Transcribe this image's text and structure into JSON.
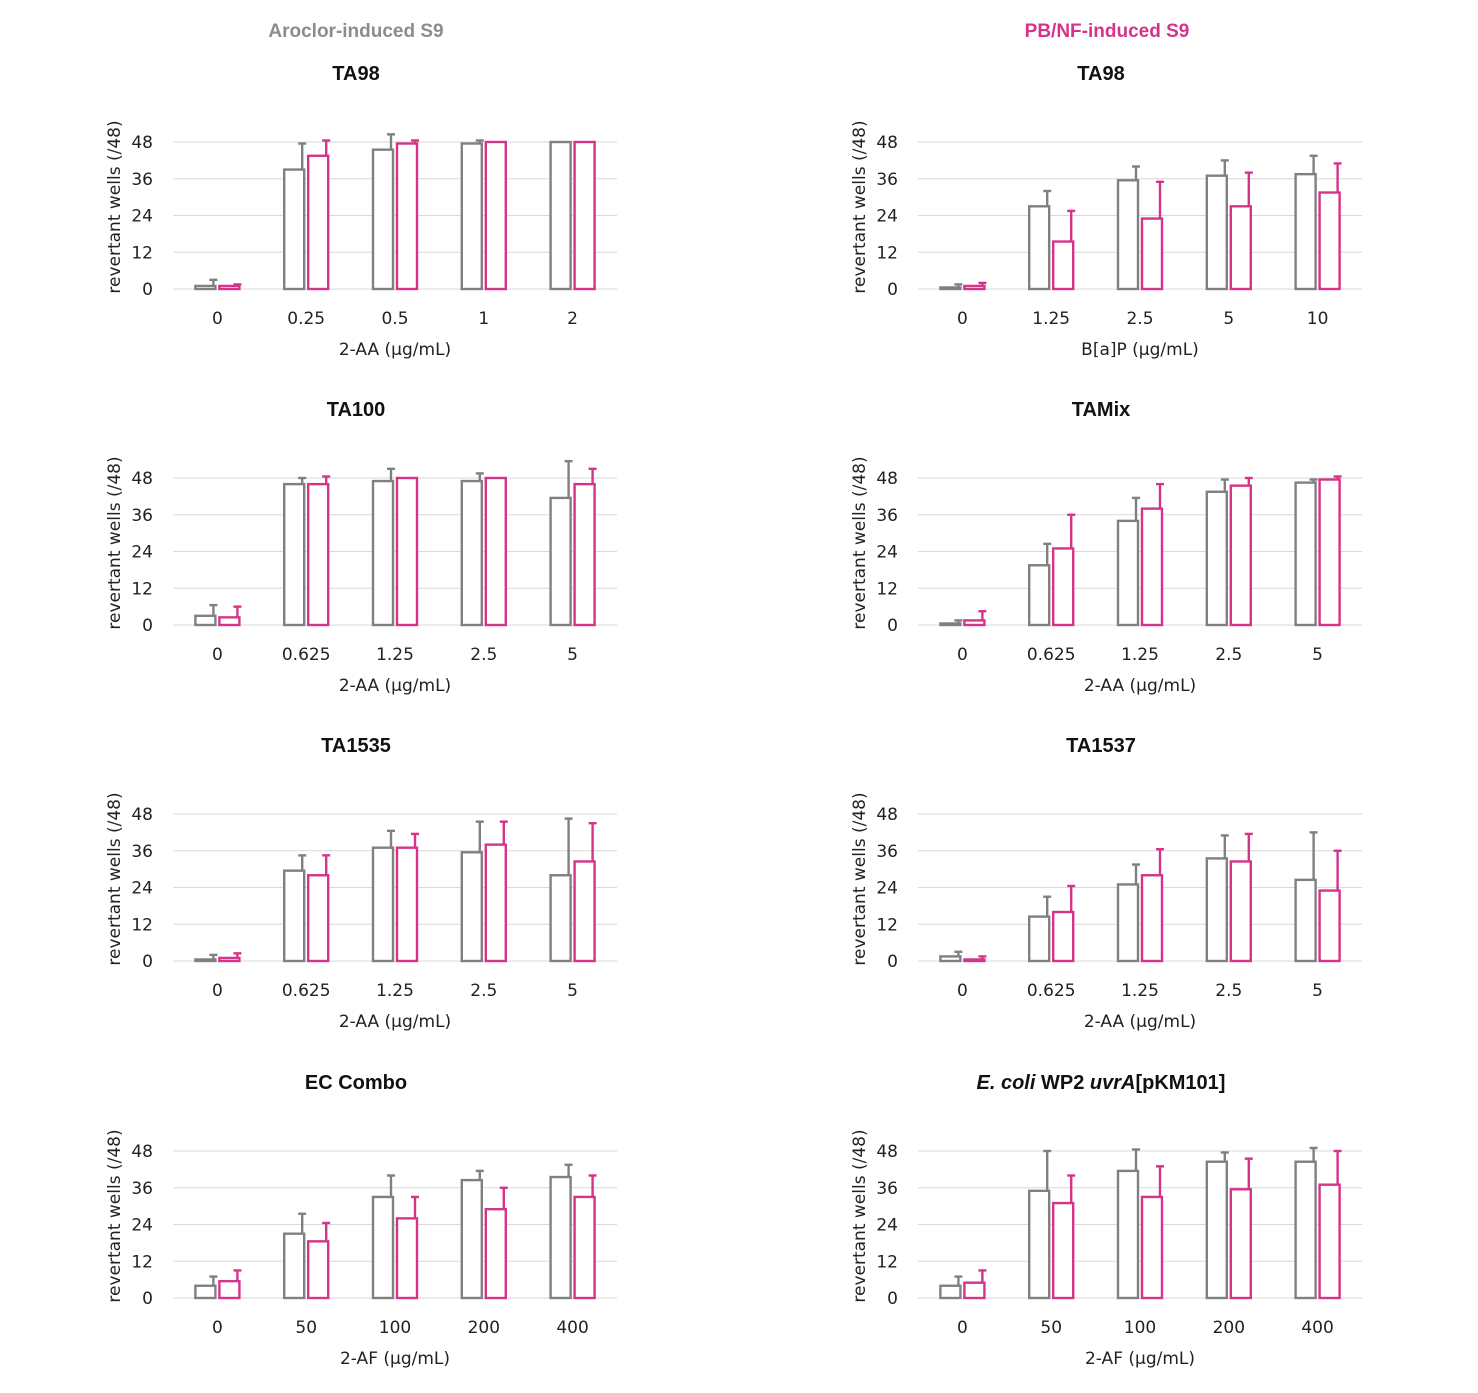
{
  "column_headers": [
    {
      "text": "Aroclor-induced S9",
      "color": "#8c8c8c"
    },
    {
      "text": "PB/NF-induced S9",
      "color": "#d6338a"
    }
  ],
  "colors": {
    "series_1": "#808080",
    "series_2": "#d6338a",
    "grid": "#d9d9d9"
  },
  "chart_data": [
    {
      "type": "bar",
      "title": "TA98",
      "xlabel": "2-AA (µg/mL)",
      "ylabel": "revertant wells (/48)",
      "ylim": [
        0,
        48
      ],
      "yticks": [
        0,
        12,
        24,
        36,
        48
      ],
      "grid": true,
      "categories": [
        "0",
        "0.25",
        "0.5",
        "1",
        "2"
      ],
      "series": [
        {
          "values": [
            1,
            39,
            45.5,
            47.5,
            48
          ],
          "errors": [
            2,
            8.5,
            5,
            1,
            0
          ]
        },
        {
          "values": [
            1,
            43.5,
            47.5,
            48,
            48
          ],
          "errors": [
            0.5,
            5,
            1,
            0,
            0
          ]
        }
      ]
    },
    {
      "type": "bar",
      "title": "TA98",
      "xlabel": "B[a]P (µg/mL)",
      "ylabel": "revertant wells (/48)",
      "ylim": [
        0,
        48
      ],
      "yticks": [
        0,
        12,
        24,
        36,
        48
      ],
      "grid": true,
      "categories": [
        "0",
        "1.25",
        "2.5",
        "5",
        "10"
      ],
      "series": [
        {
          "values": [
            0.5,
            27,
            35.5,
            37,
            37.5
          ],
          "errors": [
            1,
            5,
            4.5,
            5,
            6
          ]
        },
        {
          "values": [
            1,
            15.5,
            23,
            27,
            31.5
          ],
          "errors": [
            1,
            10,
            12,
            11,
            9.5
          ]
        }
      ]
    },
    {
      "type": "bar",
      "title": "TA100",
      "xlabel": "2-AA (µg/mL)",
      "ylabel": "revertant wells (/48)",
      "ylim": [
        0,
        48
      ],
      "yticks": [
        0,
        12,
        24,
        36,
        48
      ],
      "grid": true,
      "categories": [
        "0",
        "0.625",
        "1.25",
        "2.5",
        "5"
      ],
      "series": [
        {
          "values": [
            3,
            46,
            47,
            47,
            41.5
          ],
          "errors": [
            3.5,
            2,
            4,
            2.5,
            12
          ]
        },
        {
          "values": [
            2.5,
            46,
            48,
            48,
            46
          ],
          "errors": [
            3.5,
            2.5,
            0,
            0,
            5
          ]
        }
      ]
    },
    {
      "type": "bar",
      "title": "TAMix",
      "xlabel": "2-AA (µg/mL)",
      "ylabel": "revertant wells (/48)",
      "ylim": [
        0,
        48
      ],
      "yticks": [
        0,
        12,
        24,
        36,
        48
      ],
      "grid": true,
      "categories": [
        "0",
        "0.625",
        "1.25",
        "2.5",
        "5"
      ],
      "series": [
        {
          "values": [
            0.5,
            19.5,
            34,
            43.5,
            46.5
          ],
          "errors": [
            1,
            7,
            7.5,
            4,
            1
          ]
        },
        {
          "values": [
            1.5,
            25,
            38,
            45.5,
            47.5
          ],
          "errors": [
            3,
            11,
            8,
            2.5,
            1
          ]
        }
      ]
    },
    {
      "type": "bar",
      "title": "TA1535",
      "xlabel": "2-AA (µg/mL)",
      "ylabel": "revertant wells (/48)",
      "ylim": [
        0,
        48
      ],
      "yticks": [
        0,
        12,
        24,
        36,
        48
      ],
      "grid": true,
      "categories": [
        "0",
        "0.625",
        "1.25",
        "2.5",
        "5"
      ],
      "series": [
        {
          "values": [
            0.5,
            29.5,
            37,
            35.5,
            28
          ],
          "errors": [
            1.5,
            5,
            5.5,
            10,
            18.5
          ]
        },
        {
          "values": [
            1,
            28,
            37,
            38,
            32.5
          ],
          "errors": [
            1.5,
            6.5,
            4.5,
            7.5,
            12.5
          ]
        }
      ]
    },
    {
      "type": "bar",
      "title": "TA1537",
      "xlabel": "2-AA (µg/mL)",
      "ylabel": "revertant wells (/48)",
      "ylim": [
        0,
        48
      ],
      "yticks": [
        0,
        12,
        24,
        36,
        48
      ],
      "grid": true,
      "categories": [
        "0",
        "0.625",
        "1.25",
        "2.5",
        "5"
      ],
      "series": [
        {
          "values": [
            1.5,
            14.5,
            25,
            33.5,
            26.5
          ],
          "errors": [
            1.5,
            6.5,
            6.5,
            7.5,
            15.5
          ]
        },
        {
          "values": [
            0.5,
            16,
            28,
            32.5,
            23
          ],
          "errors": [
            1,
            8.5,
            8.5,
            9,
            13
          ]
        }
      ]
    },
    {
      "type": "bar",
      "title": "EC Combo",
      "xlabel": "2-AF (µg/mL)",
      "ylabel": "revertant wells (/48)",
      "ylim": [
        0,
        48
      ],
      "yticks": [
        0,
        12,
        24,
        36,
        48
      ],
      "grid": true,
      "categories": [
        "0",
        "50",
        "100",
        "200",
        "400"
      ],
      "series": [
        {
          "values": [
            4,
            21,
            33,
            38.5,
            39.5
          ],
          "errors": [
            3,
            6.5,
            7,
            3,
            4
          ]
        },
        {
          "values": [
            5.5,
            18.5,
            26,
            29,
            33
          ],
          "errors": [
            3.5,
            6,
            7,
            7,
            7
          ]
        }
      ]
    },
    {
      "type": "bar",
      "title": "E. coli WP2 uvrA[pKM101]",
      "title_parts": [
        {
          "text": "E. coli",
          "italic": true
        },
        {
          "text": " WP2 ",
          "italic": false
        },
        {
          "text": "uvrA",
          "italic": true
        },
        {
          "text": "[pKM101]",
          "italic": false
        }
      ],
      "xlabel": "2-AF (µg/mL)",
      "ylabel": "revertant wells (/48)",
      "ylim": [
        0,
        48
      ],
      "yticks": [
        0,
        12,
        24,
        36,
        48
      ],
      "grid": true,
      "categories": [
        "0",
        "50",
        "100",
        "200",
        "400"
      ],
      "series": [
        {
          "values": [
            4,
            35,
            41.5,
            44.5,
            44.5
          ],
          "errors": [
            3,
            13,
            7,
            3,
            4.5
          ]
        },
        {
          "values": [
            5,
            31,
            33,
            35.5,
            37
          ],
          "errors": [
            4,
            9,
            10,
            10,
            11
          ]
        }
      ]
    }
  ]
}
